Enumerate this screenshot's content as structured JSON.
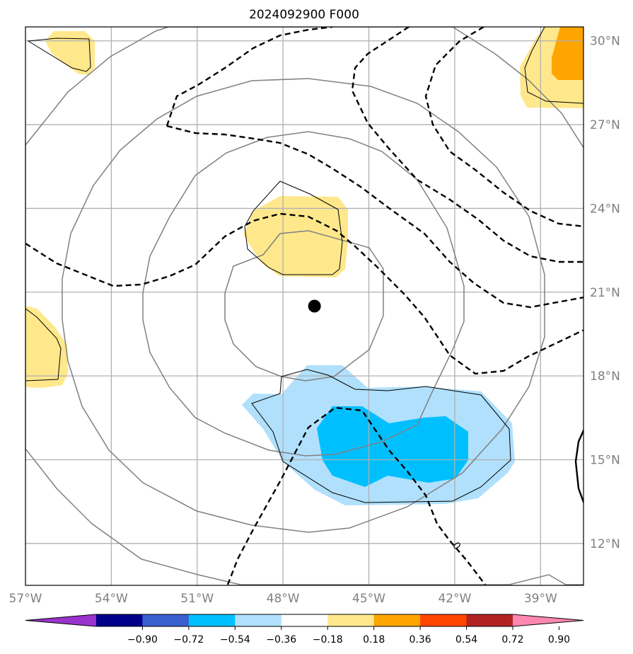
{
  "title": "2024092900 F000",
  "map": {
    "lon_range": [
      -57,
      -37.5
    ],
    "lat_range": [
      10.5,
      30.5
    ],
    "gridlines": true,
    "xticks": [
      {
        "value": -57,
        "label": "57°W"
      },
      {
        "value": -54,
        "label": "54°W"
      },
      {
        "value": -51,
        "label": "51°W"
      },
      {
        "value": -48,
        "label": "48°W"
      },
      {
        "value": -45,
        "label": "45°W"
      },
      {
        "value": -42,
        "label": "42°W"
      },
      {
        "value": -39,
        "label": "39°W"
      }
    ],
    "yticks": [
      {
        "value": 30,
        "label": "30°N"
      },
      {
        "value": 27,
        "label": "27°N"
      },
      {
        "value": 24,
        "label": "24°N"
      },
      {
        "value": 21,
        "label": "21°N"
      },
      {
        "value": 18,
        "label": "18°N"
      },
      {
        "value": 15,
        "label": "15°N"
      },
      {
        "value": 12,
        "label": "12°N"
      }
    ],
    "storm_center": {
      "lon": -46.9,
      "lat": 20.5
    },
    "contour_label": "0",
    "colors": {
      "grid": "#b0b0b0",
      "gray_contour": "#808080",
      "black": "#000000",
      "pale_yellow": "#ffe88c",
      "orange": "#ffa500",
      "light_blue": "#b0e0fc",
      "cyan_blue": "#00bfff"
    }
  },
  "colorbar": {
    "colors": [
      "#9a32cd",
      "#00008b",
      "#3a5fcd",
      "#00bfff",
      "#b0e0fc",
      "#ffffff",
      "#ffe88c",
      "#ffa500",
      "#ff4500",
      "#b22222",
      "#ff88b0"
    ],
    "tick_labels": [
      "−0.90",
      "−0.72",
      "−0.54",
      "−0.36",
      "−0.18",
      "0.18",
      "0.36",
      "0.54",
      "0.72",
      "0.90"
    ],
    "extend": "both"
  }
}
